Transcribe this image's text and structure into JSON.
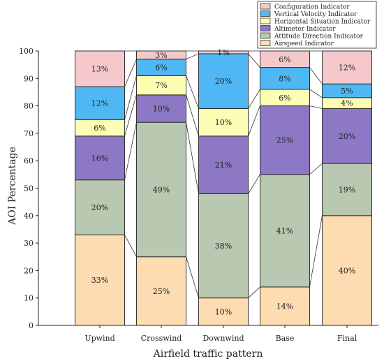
{
  "chart_data": {
    "type": "bar",
    "stacked": true,
    "xlabel": "Airfield traffic pattern",
    "ylabel": "AOI Percentage",
    "ylim": [
      0,
      100
    ],
    "yticks": [
      0,
      10,
      20,
      30,
      40,
      50,
      60,
      70,
      80,
      90,
      100
    ],
    "categories": [
      "Upwind",
      "Crosswind",
      "Downwind",
      "Base",
      "Final"
    ],
    "legend_position": "top-right",
    "connector_lines": true,
    "series": [
      {
        "name": "Airspeed Indicator",
        "color": "#fcdcb0",
        "values": [
          33,
          25,
          10,
          14,
          40
        ],
        "labels": [
          "33%",
          "25%",
          "10%",
          "14%",
          "40%"
        ]
      },
      {
        "name": "Attitude Direction Indicator",
        "color": "#b9c8b0",
        "values": [
          20,
          49,
          38,
          41,
          19
        ],
        "labels": [
          "20%",
          "49%",
          "38%",
          "41%",
          "19%"
        ]
      },
      {
        "name": "Altimeter Indicator",
        "color": "#8c78c4",
        "values": [
          16,
          10,
          21,
          25,
          20
        ],
        "labels": [
          "16%",
          "10%",
          "21%",
          "25%",
          "20%"
        ]
      },
      {
        "name": "Horizontal Situation Indicator",
        "color": "#fdfdb4",
        "values": [
          6,
          7,
          10,
          6,
          4
        ],
        "labels": [
          "6%",
          "7%",
          "10%",
          "6%",
          "4%"
        ]
      },
      {
        "name": "Vertical Velocity Indicator",
        "color": "#4fb8f4",
        "values": [
          12,
          6,
          20,
          8,
          5
        ],
        "labels": [
          "12%",
          "6%",
          "20%",
          "8%",
          "5%"
        ]
      },
      {
        "name": "Configuration Indicator",
        "color": "#f5c9cb",
        "values": [
          13,
          3,
          1,
          6,
          12
        ],
        "labels": [
          "13%",
          "3%",
          "1%",
          "6%",
          "12%"
        ]
      }
    ],
    "legend_order": [
      "Configuration Indicator",
      "Vertical Velocity Indicator",
      "Horizontal Situation Indicator",
      "Altimeter Indicator",
      "Attitude Direction Indicator",
      "Airspeed Indicator"
    ]
  }
}
